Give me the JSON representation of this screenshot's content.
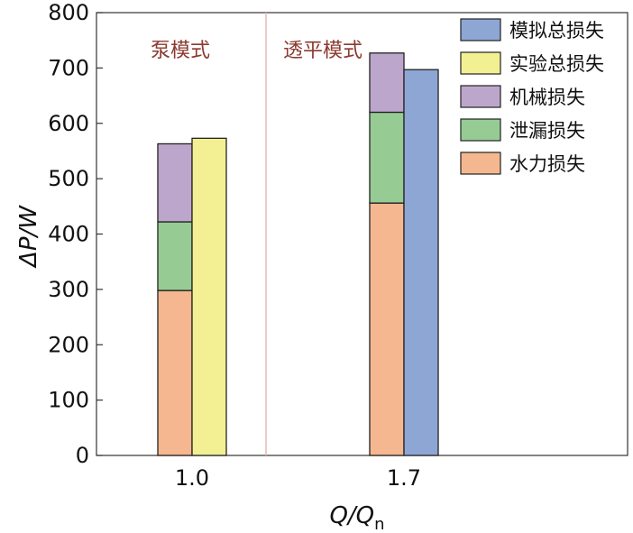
{
  "chart_data": {
    "type": "bar",
    "stacked": true,
    "categories": [
      "1.0",
      "1.7"
    ],
    "ylabel": "ΔP/W",
    "xlabel_main": "Q/Q",
    "xlabel_sub": "n",
    "ylim": [
      0,
      800
    ],
    "yticks": [
      "0",
      "100",
      "200",
      "300",
      "400",
      "500",
      "600",
      "700",
      "800"
    ],
    "regions": [
      "泵模式",
      "透平模式"
    ],
    "legend_position": "top-right",
    "grid": false,
    "series": [
      {
        "name": "模拟总损失",
        "color": "#8EA6D4",
        "stack": "total-sim",
        "values": [
          null,
          697
        ]
      },
      {
        "name": "实验总损失",
        "color": "#F2F093",
        "stack": "total-exp",
        "values": [
          573,
          null
        ]
      },
      {
        "name": "机械损失",
        "color": "#BDA6CB",
        "stack": "components",
        "values": [
          141,
          107
        ]
      },
      {
        "name": "泄漏损失",
        "color": "#96CC93",
        "stack": "components",
        "values": [
          124,
          164
        ]
      },
      {
        "name": "水力损失",
        "color": "#F5B78F",
        "stack": "components",
        "values": [
          298,
          456
        ]
      }
    ]
  }
}
